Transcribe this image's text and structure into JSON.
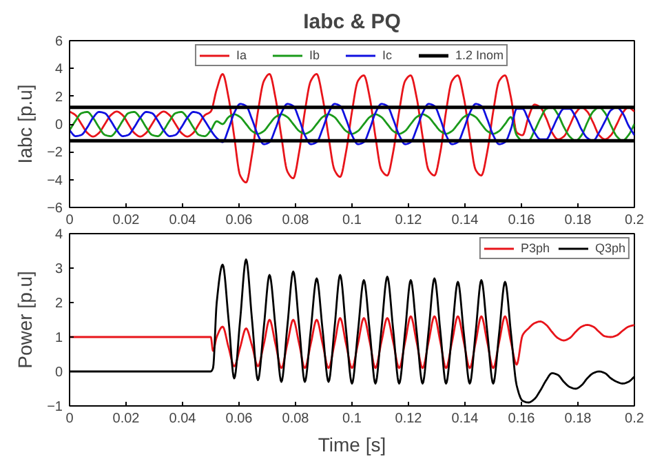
{
  "chart_data": [
    {
      "type": "line",
      "title": "Iabc & PQ",
      "ylabel": "Iabc [p.u]",
      "x": [
        0,
        0.0021,
        0.0042,
        0.0063,
        0.0083,
        0.0104,
        0.0125,
        0.0146,
        0.0167,
        0.0188,
        0.0208,
        0.0229,
        0.025,
        0.0271,
        0.0292,
        0.0313,
        0.0333,
        0.0354,
        0.0375,
        0.0396,
        0.0417,
        0.0438,
        0.0458,
        0.0479,
        0.05,
        0.0521,
        0.0542,
        0.0563,
        0.0583,
        0.0604,
        0.0625,
        0.0646,
        0.0667,
        0.0688,
        0.0708,
        0.0729,
        0.075,
        0.0771,
        0.0792,
        0.0813,
        0.0833,
        0.0854,
        0.0875,
        0.0896,
        0.0917,
        0.0938,
        0.0958,
        0.0979,
        0.1,
        0.1021,
        0.1042,
        0.1063,
        0.1083,
        0.1104,
        0.1125,
        0.1146,
        0.1167,
        0.1188,
        0.1208,
        0.1229,
        0.125,
        0.1271,
        0.1292,
        0.1313,
        0.1333,
        0.1354,
        0.1375,
        0.1396,
        0.1417,
        0.1438,
        0.1458,
        0.1479,
        0.15,
        0.1521,
        0.1542,
        0.1563,
        0.1583,
        0.1604,
        0.1625,
        0.1646,
        0.1667,
        0.1688,
        0.1708,
        0.1729,
        0.175,
        0.1771,
        0.1792,
        0.1813,
        0.1833,
        0.1854,
        0.1875,
        0.1896,
        0.1917,
        0.1938,
        0.1958,
        0.1979,
        0.2
      ],
      "series": [
        {
          "name": "Ia",
          "color": "#e8141a",
          "values": [
            0.9,
            0.64,
            0,
            -0.64,
            -0.9,
            -0.64,
            0,
            0.64,
            0.9,
            0.64,
            0,
            -0.64,
            -0.9,
            -0.64,
            0,
            0.64,
            0.9,
            0.64,
            0,
            -0.64,
            -0.9,
            -0.64,
            0,
            0.64,
            0.9,
            2.5,
            3.6,
            1.9,
            -0.9,
            -3.7,
            -4.2,
            -2.2,
            0.9,
            3.1,
            3.6,
            1.9,
            -0.9,
            -3.4,
            -3.9,
            -2.0,
            0.9,
            3.1,
            3.6,
            1.9,
            -0.9,
            -3.3,
            -3.8,
            -2.0,
            0.9,
            3.1,
            3.5,
            1.9,
            -0.9,
            -3.3,
            -3.7,
            -2.0,
            0.9,
            3.1,
            3.5,
            1.9,
            -0.9,
            -3.3,
            -3.7,
            -2.0,
            0.9,
            3.1,
            3.5,
            1.9,
            -0.9,
            -3.3,
            -3.7,
            -2.0,
            0.9,
            3.1,
            3.5,
            1.9,
            -0.6,
            -0.8,
            0.5,
            1.4,
            1.2,
            0.4,
            -0.6,
            -1.1,
            -0.9,
            -0.1,
            0.8,
            1.2,
            0.9,
            0.1,
            -0.8,
            -1.1,
            -0.8,
            0,
            0.8,
            1.2,
            0.9
          ]
        },
        {
          "name": "Ib",
          "color": "#1a9a1a",
          "values": [
            -0.45,
            0.23,
            0.78,
            0.87,
            0.45,
            -0.23,
            -0.78,
            -0.87,
            -0.45,
            0.23,
            0.78,
            0.87,
            0.45,
            -0.23,
            -0.78,
            -0.87,
            -0.45,
            0.23,
            0.78,
            0.87,
            0.45,
            -0.23,
            -0.78,
            -0.87,
            -0.45,
            0.2,
            0,
            0.5,
            0.7,
            0.5,
            0,
            -0.5,
            -0.7,
            -0.5,
            0,
            0.5,
            0.7,
            0.5,
            0,
            -0.5,
            -0.7,
            -0.5,
            0,
            0.5,
            0.7,
            0.5,
            0,
            -0.5,
            -0.7,
            -0.5,
            0,
            0.5,
            0.7,
            0.5,
            0,
            -0.5,
            -0.7,
            -0.5,
            0,
            0.5,
            0.7,
            0.5,
            0,
            -0.5,
            -0.7,
            -0.5,
            0,
            0.5,
            0.7,
            0.5,
            0,
            -0.5,
            -0.7,
            -0.5,
            0,
            0.5,
            -0.8,
            -1.2,
            -1.2,
            -0.5,
            0.4,
            1.1,
            1.2,
            0.7,
            -0.2,
            -0.9,
            -1.2,
            -0.8,
            0.1,
            0.9,
            1.2,
            0.8,
            -0.1,
            -0.9,
            -1.2,
            -0.8,
            0
          ]
        },
        {
          "name": "Ic",
          "color": "#1010e0",
          "values": [
            -0.45,
            -0.87,
            -0.78,
            -0.23,
            0.45,
            0.87,
            0.78,
            0.23,
            -0.45,
            -0.87,
            -0.78,
            -0.23,
            0.45,
            0.87,
            0.78,
            0.23,
            -0.45,
            -0.87,
            -0.78,
            -0.23,
            0.45,
            0.87,
            0.78,
            0.23,
            -0.45,
            -1.0,
            -1.3,
            -0.35,
            0.8,
            1.45,
            1.3,
            0.35,
            -0.8,
            -1.45,
            -1.3,
            -0.35,
            0.8,
            1.45,
            1.3,
            0.35,
            -0.8,
            -1.45,
            -1.3,
            -0.35,
            0.8,
            1.45,
            1.3,
            0.35,
            -0.8,
            -1.45,
            -1.3,
            -0.35,
            0.8,
            1.45,
            1.3,
            0.35,
            -0.8,
            -1.45,
            -1.3,
            -0.35,
            0.8,
            1.45,
            1.3,
            0.35,
            -0.8,
            -1.45,
            -1.3,
            -0.35,
            0.8,
            1.45,
            1.3,
            0.35,
            -0.8,
            -1.45,
            -1.3,
            -0.35,
            1.1,
            1.1,
            0.3,
            -0.6,
            -1.1,
            -1.1,
            -0.4,
            0.5,
            1.1,
            1.1,
            0.5,
            -0.4,
            -1.0,
            -1.2,
            -0.6,
            0.2,
            1.0,
            1.2,
            0.8,
            -0.1,
            -0.8
          ]
        }
      ],
      "ref_lines": [
        {
          "axis": "y",
          "value": 1.2,
          "label": "1.2 Inom",
          "color": "#000000"
        },
        {
          "axis": "y",
          "value": -1.2,
          "label": null,
          "color": "#000000"
        }
      ],
      "xlim": [
        0,
        0.2
      ],
      "xticks": [
        0,
        0.02,
        0.04,
        0.06,
        0.08,
        0.1,
        0.12,
        0.14,
        0.16,
        0.18,
        0.2
      ],
      "ylim": [
        -6,
        6
      ],
      "yticks": [
        -6,
        -4,
        -2,
        0,
        2,
        4,
        6
      ],
      "grid": false,
      "legend": "top",
      "marker": "none",
      "line_style": "solid"
    },
    {
      "type": "line",
      "xlabel": "Time [s]",
      "ylabel": "Power [p.u]",
      "x": [
        0,
        0.05,
        0.0508,
        0.0521,
        0.0542,
        0.0563,
        0.0583,
        0.0604,
        0.0625,
        0.0646,
        0.0667,
        0.0688,
        0.0708,
        0.0729,
        0.075,
        0.0771,
        0.0792,
        0.0813,
        0.0833,
        0.0854,
        0.0875,
        0.0896,
        0.0917,
        0.0938,
        0.0958,
        0.0979,
        0.1,
        0.1021,
        0.1042,
        0.1063,
        0.1083,
        0.1104,
        0.1125,
        0.1146,
        0.1167,
        0.1188,
        0.1208,
        0.1229,
        0.125,
        0.1271,
        0.1292,
        0.1313,
        0.1333,
        0.1354,
        0.1375,
        0.1396,
        0.1417,
        0.1438,
        0.1458,
        0.1479,
        0.15,
        0.1521,
        0.1542,
        0.1563,
        0.1583,
        0.1604,
        0.1625,
        0.1646,
        0.1667,
        0.1688,
        0.1708,
        0.1729,
        0.175,
        0.1771,
        0.1792,
        0.1813,
        0.1833,
        0.1854,
        0.1875,
        0.1896,
        0.1917,
        0.1938,
        0.1958,
        0.1979,
        0.2
      ],
      "series": [
        {
          "name": "P3ph",
          "color": "#e8141a",
          "values": [
            1,
            1,
            0.6,
            1.0,
            1.3,
            0.7,
            0.15,
            0.7,
            1.25,
            0.75,
            0.15,
            0.8,
            1.5,
            0.8,
            0.1,
            0.8,
            1.5,
            0.8,
            0.1,
            0.8,
            1.5,
            0.8,
            0.1,
            0.8,
            1.55,
            0.8,
            0.1,
            0.8,
            1.55,
            0.85,
            0.1,
            0.85,
            1.55,
            0.85,
            0.1,
            0.85,
            1.6,
            0.85,
            0.1,
            0.85,
            1.6,
            0.85,
            0.1,
            0.85,
            1.6,
            0.85,
            0.1,
            0.85,
            1.6,
            0.85,
            0.1,
            0.85,
            1.6,
            0.85,
            0.2,
            1.05,
            1.25,
            1.4,
            1.45,
            1.35,
            1.15,
            0.97,
            0.9,
            0.97,
            1.15,
            1.3,
            1.35,
            1.3,
            1.15,
            1.02,
            1.0,
            1.05,
            1.18,
            1.3,
            1.35
          ]
        },
        {
          "name": "Q3ph",
          "color": "#000000",
          "values": [
            0,
            0,
            0.1,
            2.0,
            3.1,
            1.5,
            -0.2,
            1.5,
            3.25,
            1.5,
            -0.25,
            1.3,
            2.8,
            1.3,
            -0.3,
            1.3,
            2.9,
            1.3,
            -0.3,
            1.2,
            2.7,
            1.2,
            -0.3,
            1.25,
            2.8,
            1.2,
            -0.35,
            1.15,
            2.65,
            1.15,
            -0.35,
            1.2,
            2.75,
            1.2,
            -0.35,
            1.15,
            2.65,
            1.15,
            -0.35,
            1.15,
            2.7,
            1.15,
            -0.35,
            1.1,
            2.6,
            1.1,
            -0.35,
            1.15,
            2.65,
            1.15,
            -0.35,
            1.1,
            2.6,
            1.1,
            -0.4,
            -0.85,
            -0.9,
            -0.8,
            -0.55,
            -0.25,
            -0.05,
            -0.1,
            -0.3,
            -0.45,
            -0.5,
            -0.4,
            -0.2,
            -0.05,
            0,
            -0.05,
            -0.2,
            -0.3,
            -0.35,
            -0.3,
            -0.15
          ]
        }
      ],
      "xlim": [
        0,
        0.2
      ],
      "xticks": [
        0,
        0.02,
        0.04,
        0.06,
        0.08,
        0.1,
        0.12,
        0.14,
        0.16,
        0.18,
        0.2
      ],
      "ylim": [
        -1,
        4
      ],
      "yticks": [
        -1,
        0,
        1,
        2,
        3,
        4
      ],
      "grid": false,
      "legend": "top right",
      "marker": "none",
      "line_style": "solid"
    }
  ]
}
